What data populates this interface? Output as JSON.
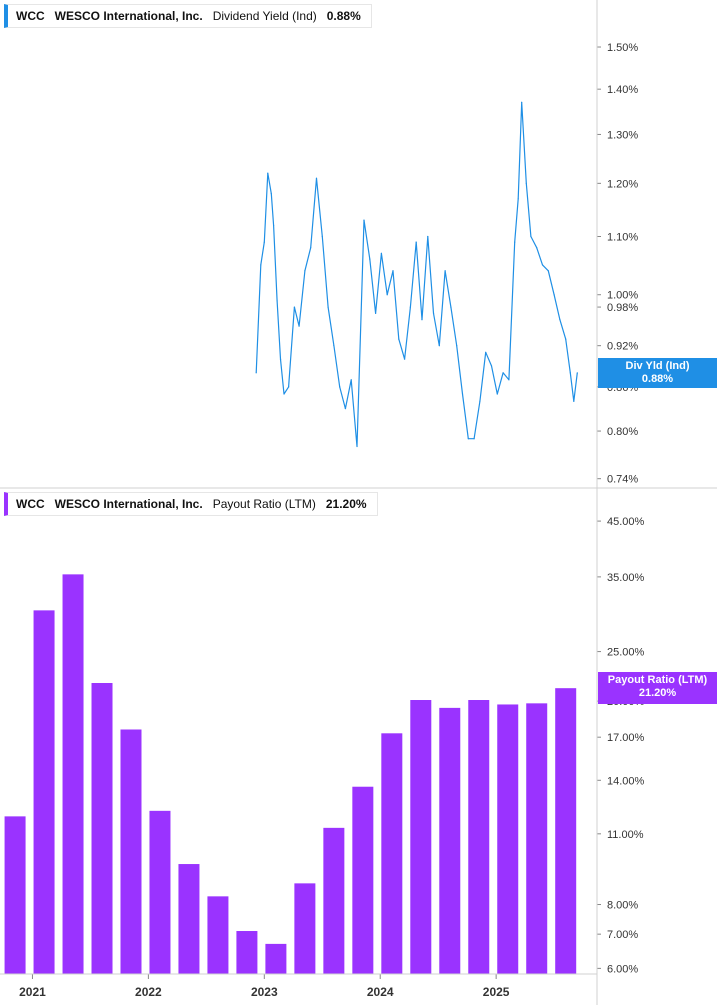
{
  "colors": {
    "yield_line": "#1f8fe5",
    "bars": "#9a33ff",
    "axis": "#d0d0d0",
    "badge_yield": "#1f8fe5",
    "badge_payout": "#9a33ff"
  },
  "legend_top": {
    "ticker": "WCC",
    "company": "WESCO International, Inc.",
    "metric": "Dividend Yield (Ind)",
    "value": "0.88%"
  },
  "legend_bottom": {
    "ticker": "WCC",
    "company": "WESCO International, Inc.",
    "metric": "Payout Ratio (LTM)",
    "value": "21.20%"
  },
  "badge_top": {
    "line1": "Div Yld (Ind)",
    "line2": "0.88%"
  },
  "badge_bottom": {
    "line1": "Payout Ratio (LTM)",
    "line2": "21.20%"
  },
  "chart_data": [
    {
      "type": "line",
      "name": "Dividend Yield (Ind)",
      "scale": "log",
      "ylim": [
        0.73,
        1.62
      ],
      "xlim": [
        2020.72,
        2025.87
      ],
      "y_ticks": [
        1.5,
        1.4,
        1.3,
        1.2,
        1.1,
        1.0,
        0.98,
        0.92,
        0.86,
        0.8,
        0.74
      ],
      "y_tick_labels": [
        "1.50%",
        "1.40%",
        "1.30%",
        "1.20%",
        "1.10%",
        "1.00%",
        "0.98%",
        "0.92%",
        "0.86%",
        "0.80%",
        "0.74%"
      ],
      "x": [
        2022.93,
        2022.97,
        2023.0,
        2023.03,
        2023.06,
        2023.08,
        2023.11,
        2023.14,
        2023.17,
        2023.21,
        2023.26,
        2023.3,
        2023.35,
        2023.4,
        2023.45,
        2023.5,
        2023.55,
        2023.6,
        2023.65,
        2023.7,
        2023.75,
        2023.8,
        2023.86,
        2023.91,
        2023.96,
        2024.01,
        2024.06,
        2024.11,
        2024.16,
        2024.21,
        2024.26,
        2024.31,
        2024.36,
        2024.41,
        2024.46,
        2024.51,
        2024.56,
        2024.61,
        2024.66,
        2024.71,
        2024.76,
        2024.81,
        2024.86,
        2024.91,
        2024.96,
        2025.01,
        2025.06,
        2025.11,
        2025.16,
        2025.19,
        2025.22,
        2025.26,
        2025.3,
        2025.35,
        2025.4,
        2025.45,
        2025.5,
        2025.55,
        2025.6,
        2025.64,
        2025.67,
        2025.7
      ],
      "values": [
        0.88,
        1.05,
        1.09,
        1.22,
        1.18,
        1.12,
        0.99,
        0.9,
        0.85,
        0.86,
        0.98,
        0.95,
        1.04,
        1.08,
        1.21,
        1.1,
        0.98,
        0.92,
        0.86,
        0.83,
        0.87,
        0.78,
        1.13,
        1.06,
        0.97,
        1.07,
        1.0,
        1.04,
        0.93,
        0.9,
        0.98,
        1.09,
        0.96,
        1.1,
        0.97,
        0.92,
        1.04,
        0.98,
        0.92,
        0.85,
        0.79,
        0.79,
        0.84,
        0.91,
        0.89,
        0.85,
        0.88,
        0.87,
        1.09,
        1.17,
        1.37,
        1.2,
        1.1,
        1.08,
        1.05,
        1.04,
        1.0,
        0.96,
        0.93,
        0.88,
        0.84,
        0.88
      ]
    },
    {
      "type": "bar",
      "name": "Payout Ratio (LTM)",
      "scale": "log",
      "ylim": [
        5.85,
        52
      ],
      "xlim": [
        2020.72,
        2025.87
      ],
      "y_ticks": [
        45,
        35,
        25,
        20,
        17,
        14,
        11,
        8,
        7,
        6
      ],
      "y_tick_labels": [
        "45.00%",
        "35.00%",
        "25.00%",
        "20.00%",
        "17.00%",
        "14.00%",
        "11.00%",
        "8.00%",
        "7.00%",
        "6.00%"
      ],
      "x": [
        2020.85,
        2021.1,
        2021.35,
        2021.6,
        2021.85,
        2022.1,
        2022.35,
        2022.6,
        2022.85,
        2023.1,
        2023.35,
        2023.6,
        2023.85,
        2024.1,
        2024.35,
        2024.6,
        2024.85,
        2025.1,
        2025.35,
        2025.6
      ],
      "values": [
        11.9,
        30.1,
        35.4,
        21.7,
        17.6,
        12.2,
        9.6,
        8.3,
        7.1,
        6.7,
        8.8,
        11.3,
        13.6,
        17.3,
        20.1,
        19.4,
        20.1,
        19.7,
        19.8,
        21.2
      ]
    }
  ],
  "x_axis": {
    "ticks": [
      2021,
      2022,
      2023,
      2024,
      2025
    ],
    "labels": [
      "2021",
      "2022",
      "2023",
      "2024",
      "2025"
    ]
  }
}
